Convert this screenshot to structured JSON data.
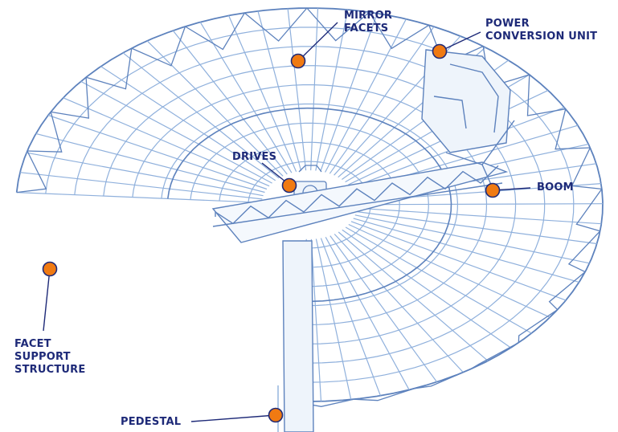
{
  "diagram": {
    "labels": {
      "mirror_facets": [
        "MIRROR",
        "FACETS"
      ],
      "power_conversion_unit": [
        "POWER",
        "CONVERSION UNIT"
      ],
      "drives": [
        "DRIVES"
      ],
      "boom": [
        "BOOM"
      ],
      "facet_support_structure": [
        "FACET",
        "SUPPORT",
        "STRUCTURE"
      ],
      "pedestal": [
        "PEDESTAL"
      ]
    },
    "colors": {
      "label_text": "#1e2a78",
      "leader_line": "#1e2a78",
      "marker_fill": "#f07a12",
      "marker_ring": "#1e2a78",
      "wireframe": "#8fb0dc",
      "wireframe_dark": "#5d82bd"
    }
  }
}
